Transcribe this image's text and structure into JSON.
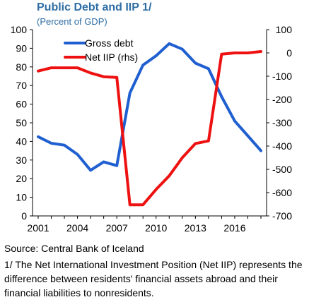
{
  "chart_data": {
    "type": "line",
    "title": "Public Debt and IIP 1/",
    "subtitle": "(Percent of GDP)",
    "x": [
      2001,
      2002,
      2003,
      2004,
      2005,
      2006,
      2007,
      2008,
      2009,
      2010,
      2011,
      2012,
      2013,
      2014,
      2015,
      2016,
      2017,
      2018
    ],
    "x_tick_labels": [
      "2001",
      "2004",
      "2007",
      "2010",
      "2013",
      "2016"
    ],
    "series": [
      {
        "name": "Gross debt",
        "axis": "left",
        "color": "#1f5fd0",
        "values": [
          42.5,
          39,
          38,
          33,
          24.5,
          29,
          27,
          66,
          81,
          86,
          92.5,
          89.5,
          82,
          79,
          64,
          51,
          43,
          35
        ]
      },
      {
        "name": "Net IIP (rhs)",
        "axis": "right",
        "color": "#ee1111",
        "values": [
          -78,
          -64,
          -64,
          -64,
          -86,
          -102,
          -105,
          -652,
          -652,
          -586,
          -528,
          -450,
          -389,
          -378,
          -5,
          0,
          0,
          6
        ]
      }
    ],
    "left_axis": {
      "ylim": [
        0,
        100
      ],
      "ticks": [
        "0",
        "10",
        "20",
        "30",
        "40",
        "50",
        "60",
        "70",
        "80",
        "90",
        "100"
      ]
    },
    "right_axis": {
      "ylim": [
        -700,
        100
      ],
      "ticks": [
        "100",
        "0",
        "-100",
        "-200",
        "-300",
        "-400",
        "-500",
        "-600",
        "-700"
      ]
    },
    "grid": false,
    "legend_position": "top-left"
  },
  "source": "Source: Central Bank of Iceland",
  "note": "1/ The Net International Investment Position (Net IIP) represents the difference between residents' financial assets abroad and their financial liabilities to nonresidents."
}
